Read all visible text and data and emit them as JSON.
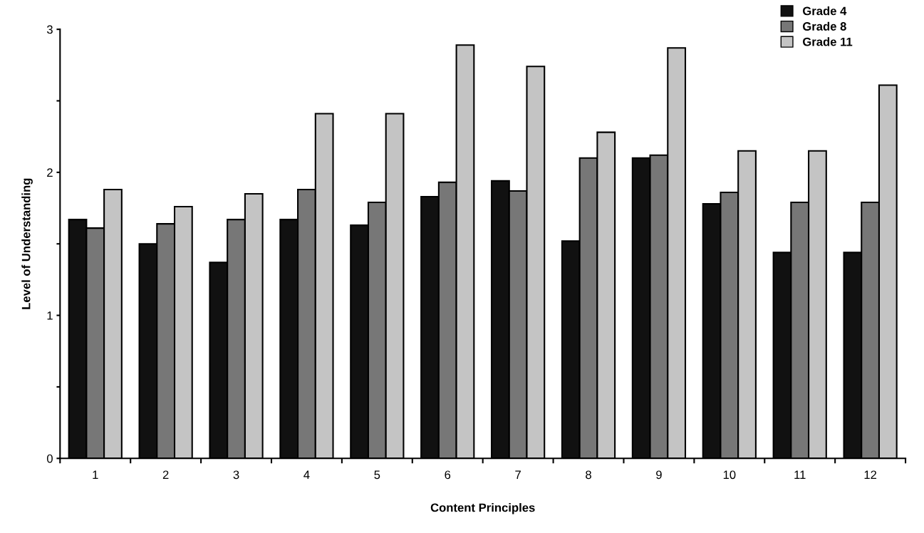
{
  "chart_data": {
    "type": "bar",
    "xlabel": "Content Principles",
    "ylabel": "Level of Understanding",
    "categories": [
      "1",
      "2",
      "3",
      "4",
      "5",
      "6",
      "7",
      "8",
      "9",
      "10",
      "11",
      "12"
    ],
    "series": [
      {
        "name": "Grade 4",
        "color": "#111111",
        "values": [
          1.67,
          1.5,
          1.37,
          1.67,
          1.63,
          1.83,
          1.94,
          1.52,
          2.1,
          1.78,
          1.44,
          1.44
        ]
      },
      {
        "name": "Grade 8",
        "color": "#777777",
        "values": [
          1.61,
          1.64,
          1.67,
          1.88,
          1.79,
          1.93,
          1.87,
          2.1,
          2.12,
          1.86,
          1.79,
          1.79
        ]
      },
      {
        "name": "Grade 11",
        "color": "#c4c4c4",
        "values": [
          1.88,
          1.76,
          1.85,
          2.41,
          2.41,
          2.89,
          2.74,
          2.28,
          2.87,
          2.15,
          2.15,
          2.61
        ]
      }
    ],
    "ylim": [
      0,
      3
    ],
    "yticks": [
      0,
      {
        "value": 0.5,
        "label": null
      },
      1,
      {
        "value": 1.5,
        "label": null
      },
      2,
      {
        "value": 2.5,
        "label": null
      },
      3
    ],
    "grid": false,
    "legend": "top right"
  }
}
